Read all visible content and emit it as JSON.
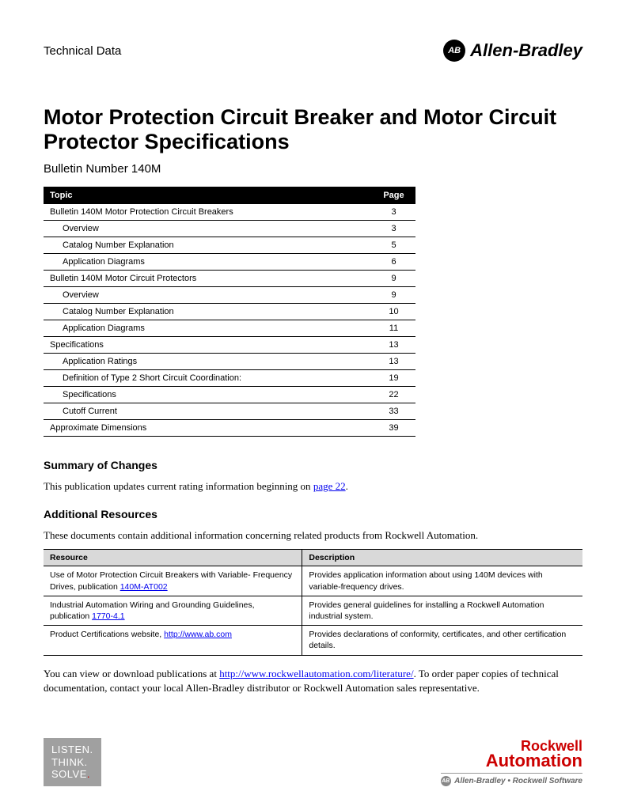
{
  "header": {
    "category": "Technical Data",
    "brand_abbr": "AB",
    "brand_name": "Allen-Bradley"
  },
  "title": "Motor Protection Circuit Breaker and Motor Circuit Protector Specifications",
  "bulletin": "Bulletin Number 140M",
  "toc": {
    "col_topic": "Topic",
    "col_page": "Page",
    "rows": [
      {
        "label": "Bulletin 140M Motor Protection Circuit Breakers",
        "page": "3",
        "indent": 0
      },
      {
        "label": "Overview",
        "page": "3",
        "indent": 1
      },
      {
        "label": "Catalog Number Explanation",
        "page": "5",
        "indent": 1
      },
      {
        "label": "Application Diagrams",
        "page": "6",
        "indent": 1
      },
      {
        "label": "Bulletin 140M Motor Circuit Protectors",
        "page": "9",
        "indent": 0
      },
      {
        "label": "Overview",
        "page": "9",
        "indent": 1
      },
      {
        "label": "Catalog Number Explanation",
        "page": "10",
        "indent": 1
      },
      {
        "label": "Application Diagrams",
        "page": "11",
        "indent": 1
      },
      {
        "label": "Specifications",
        "page": "13",
        "indent": 0
      },
      {
        "label": "Application Ratings",
        "page": "13",
        "indent": 1
      },
      {
        "label": "Definition of Type 2 Short Circuit Coordination:",
        "page": "19",
        "indent": 1
      },
      {
        "label": "Specifications",
        "page": "22",
        "indent": 1
      },
      {
        "label": "Cutoff Current",
        "page": "33",
        "indent": 1
      },
      {
        "label": "Approximate Dimensions",
        "page": "39",
        "indent": 0
      }
    ]
  },
  "summary": {
    "heading": "Summary of Changes",
    "text_pre": "This publication updates current rating information beginning on ",
    "link": "page 22",
    "text_post": "."
  },
  "additional": {
    "heading": "Additional Resources",
    "intro": "These documents contain additional information concerning related products from Rockwell Automation.",
    "col_resource": "Resource",
    "col_description": "Description",
    "rows": [
      {
        "res_pre": "Use of Motor Protection Circuit Breakers with Variable- Frequency Drives, publication ",
        "res_link": "140M-AT002",
        "desc": "Provides application information about using 140M devices with variable-frequency drives."
      },
      {
        "res_pre": "Industrial Automation Wiring and Grounding Guidelines, publication ",
        "res_link": "1770-4.1",
        "desc": "Provides general guidelines for installing a Rockwell Automation industrial system."
      },
      {
        "res_pre": "Product Certifications website, ",
        "res_link": "http://www.ab.com",
        "desc": "Provides declarations of conformity, certificates, and other certification details."
      }
    ],
    "closing_pre": "You can view or download publications at ",
    "closing_link": "http://www.rockwellautomation.com/literature/",
    "closing_post": ". To order paper copies of technical documentation, contact your local Allen-Bradley distributor or Rockwell Automation sales representative."
  },
  "footer": {
    "listen_l1": "LISTEN.",
    "listen_l2": "THINK.",
    "listen_l3": "SOLVE",
    "rockwell_top": "Rockwell",
    "rockwell_bottom": "Automation",
    "brands": "Allen-Bradley  •  Rockwell Software"
  }
}
